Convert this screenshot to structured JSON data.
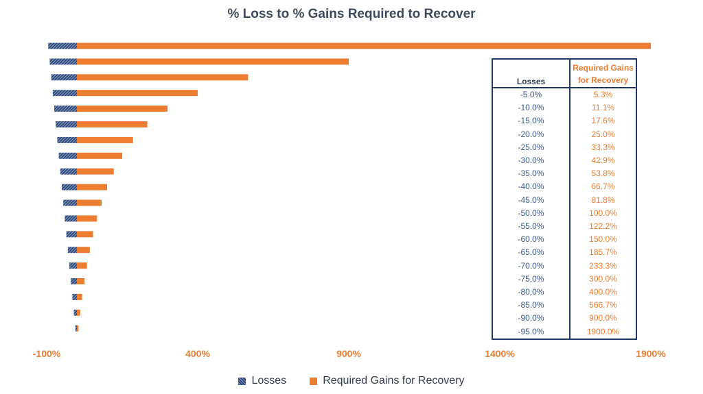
{
  "chart_data": {
    "type": "bar",
    "orientation": "horizontal",
    "title": "% Loss to % Gains Required to Recover",
    "xlim": [
      -100,
      1900
    ],
    "x_ticks": [
      "-100%",
      "400%",
      "900%",
      "1400%",
      "1900%"
    ],
    "x_tick_values": [
      -100,
      400,
      900,
      1400,
      1900
    ],
    "categories_top_to_bottom": [
      "-95.0%",
      "-90.0%",
      "-85.0%",
      "-80.0%",
      "-75.0%",
      "-70.0%",
      "-65.0%",
      "-60.0%",
      "-55.0%",
      "-50.0%",
      "-45.0%",
      "-40.0%",
      "-35.0%",
      "-30.0%",
      "-25.0%",
      "-20.0%",
      "-15.0%",
      "-10.0%",
      "-5.0%"
    ],
    "series": [
      {
        "name": "Losses",
        "color": "#2f4a7a",
        "pattern": "hatched",
        "values": [
          -95,
          -90,
          -85,
          -80,
          -75,
          -70,
          -65,
          -60,
          -55,
          -50,
          -45,
          -40,
          -35,
          -30,
          -25,
          -20,
          -15,
          -10,
          -5
        ]
      },
      {
        "name": "Required Gains for Recovery",
        "color": "#ed7d31",
        "values": [
          1900,
          900,
          566.7,
          400,
          300,
          233.3,
          185.7,
          150,
          122.2,
          100,
          81.8,
          66.7,
          53.8,
          42.9,
          33.3,
          25,
          17.6,
          11.1,
          5.3
        ]
      }
    ],
    "legend_position": "bottom",
    "grid": false
  },
  "table": {
    "headers": {
      "losses": "Losses",
      "gains_line1": "Required Gains",
      "gains_line2": "for Recovery"
    },
    "rows": [
      {
        "loss": "-5.0%",
        "gain": "5.3%"
      },
      {
        "loss": "-10.0%",
        "gain": "11.1%"
      },
      {
        "loss": "-15.0%",
        "gain": "17.6%"
      },
      {
        "loss": "-20.0%",
        "gain": "25.0%"
      },
      {
        "loss": "-25.0%",
        "gain": "33.3%"
      },
      {
        "loss": "-30.0%",
        "gain": "42.9%"
      },
      {
        "loss": "-35.0%",
        "gain": "53.8%"
      },
      {
        "loss": "-40.0%",
        "gain": "66.7%"
      },
      {
        "loss": "-45.0%",
        "gain": "81.8%"
      },
      {
        "loss": "-50.0%",
        "gain": "100.0%"
      },
      {
        "loss": "-55.0%",
        "gain": "122.2%"
      },
      {
        "loss": "-60.0%",
        "gain": "150.0%"
      },
      {
        "loss": "-65.0%",
        "gain": "185.7%"
      },
      {
        "loss": "-70.0%",
        "gain": "233.3%"
      },
      {
        "loss": "-75.0%",
        "gain": "300.0%"
      },
      {
        "loss": "-80.0%",
        "gain": "400.0%"
      },
      {
        "loss": "-85.0%",
        "gain": "566.7%"
      },
      {
        "loss": "-90.0%",
        "gain": "900.0%"
      },
      {
        "loss": "-95.0%",
        "gain": "1900.0%"
      }
    ]
  },
  "legend": {
    "losses": "Losses",
    "gains": "Required Gains for Recovery"
  }
}
